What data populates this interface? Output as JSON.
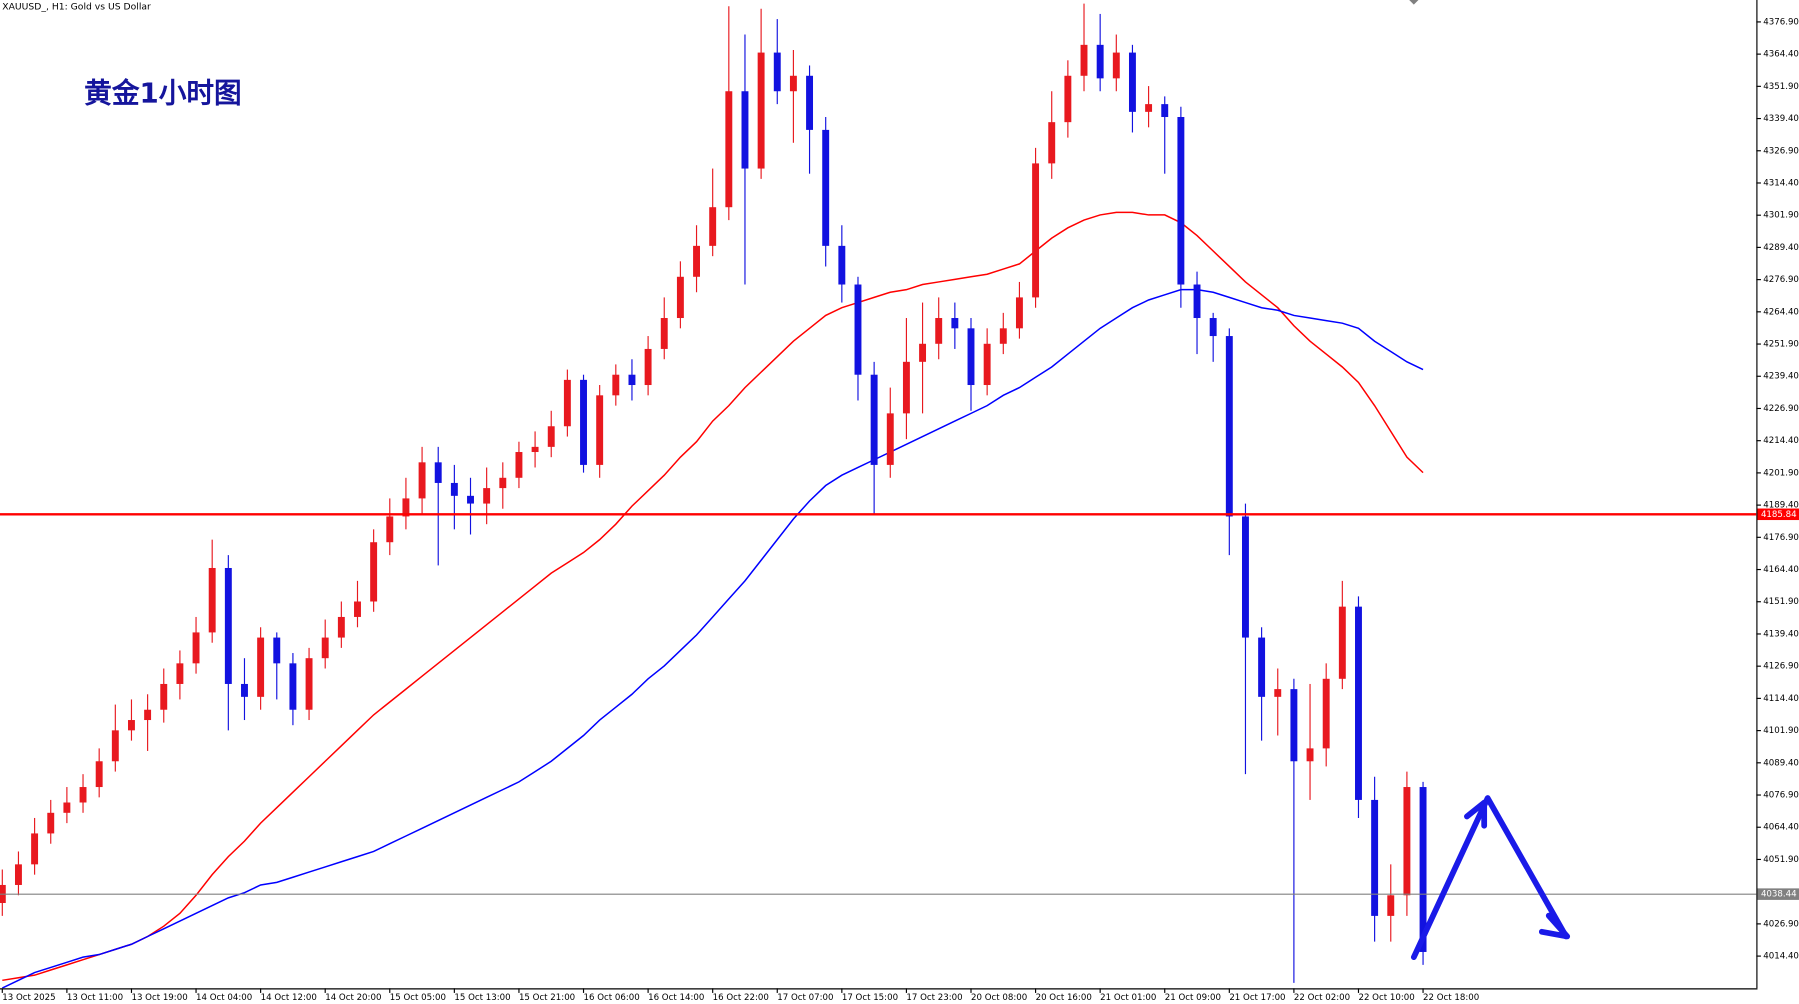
{
  "chart_data": {
    "type": "candlestick",
    "title": "XAUUSD_, H1: Gold vs US Dollar",
    "annotation": "黄金1小时图",
    "up_color": "#e8191f",
    "down_color": "#1212e0",
    "categories": [
      "13 Oct 2025",
      null,
      null,
      null,
      "13 Oct 11:00",
      null,
      null,
      null,
      "13 Oct 19:00",
      null,
      null,
      null,
      "14 Oct 04:00",
      null,
      null,
      null,
      "14 Oct 12:00",
      null,
      null,
      null,
      "14 Oct 20:00",
      null,
      null,
      null,
      "15 Oct 05:00",
      null,
      null,
      null,
      "15 Oct 13:00",
      null,
      null,
      null,
      "15 Oct 21:00",
      null,
      null,
      null,
      "16 Oct 06:00",
      null,
      null,
      null,
      "16 Oct 14:00",
      null,
      null,
      null,
      "16 Oct 22:00",
      null,
      null,
      null,
      "17 Oct 07:00",
      null,
      null,
      null,
      "17 Oct 15:00",
      null,
      null,
      null,
      "17 Oct 23:00",
      null,
      null,
      null,
      "20 Oct 08:00",
      null,
      null,
      null,
      "20 Oct 16:00",
      null,
      null,
      null,
      "21 Oct 01:00",
      null,
      null,
      null,
      "21 Oct 09:00",
      null,
      null,
      null,
      "21 Oct 17:00",
      null,
      null,
      null,
      "22 Oct 02:00",
      null,
      null,
      null,
      "22 Oct 10:00",
      null,
      null,
      null,
      "22 Oct 18:00"
    ],
    "open": [
      4035,
      4042,
      4050,
      4062,
      4070,
      4074,
      4080,
      4090,
      4102,
      4106,
      4110,
      4120,
      4128,
      4140,
      4165,
      4120,
      4115,
      4138,
      4128,
      4110,
      4130,
      4138,
      4146,
      4152,
      4175,
      4185,
      4192,
      4206,
      4198,
      4193,
      4190,
      4196,
      4200,
      4210,
      4212,
      4220,
      4238,
      4205,
      4232,
      4240,
      4236,
      4250,
      4262,
      4278,
      4290,
      4305,
      4350,
      4320,
      4365,
      4350,
      4356,
      4335,
      4290,
      4275,
      4240,
      4205,
      4225,
      4245,
      4252,
      4262,
      4258,
      4236,
      4252,
      4258,
      4270,
      4322,
      4338,
      4356,
      4368,
      4355,
      4365,
      4342,
      4345,
      4340,
      4275,
      4262,
      4255,
      4185,
      4138,
      4115,
      4118,
      4090,
      4095,
      4122,
      4150,
      4075,
      4030,
      4038,
      4080
    ],
    "high": [
      4048,
      4055,
      4068,
      4075,
      4080,
      4085,
      4095,
      4112,
      4114,
      4116,
      4126,
      4133,
      4146,
      4176,
      4170,
      4130,
      4142,
      4140,
      4132,
      4134,
      4145,
      4152,
      4160,
      4180,
      4192,
      4200,
      4212,
      4212,
      4205,
      4200,
      4204,
      4206,
      4214,
      4218,
      4226,
      4242,
      4240,
      4236,
      4244,
      4246,
      4255,
      4270,
      4284,
      4298,
      4320,
      4383,
      4372,
      4382,
      4378,
      4366,
      4360,
      4340,
      4298,
      4278,
      4245,
      4235,
      4262,
      4268,
      4270,
      4268,
      4262,
      4258,
      4264,
      4276,
      4328,
      4350,
      4362,
      4384,
      4380,
      4372,
      4368,
      4352,
      4348,
      4344,
      4280,
      4264,
      4258,
      4190,
      4142,
      4126,
      4122,
      4120,
      4128,
      4160,
      4154,
      4084,
      4050,
      4086,
      4082
    ],
    "low": [
      4030,
      4038,
      4046,
      4058,
      4066,
      4070,
      4076,
      4086,
      4098,
      4094,
      4105,
      4114,
      4124,
      4136,
      4102,
      4106,
      4110,
      4114,
      4104,
      4106,
      4126,
      4134,
      4142,
      4148,
      4170,
      4180,
      4186,
      4166,
      4180,
      4178,
      4182,
      4188,
      4196,
      4204,
      4208,
      4216,
      4202,
      4200,
      4228,
      4230,
      4232,
      4246,
      4258,
      4272,
      4286,
      4300,
      4275,
      4316,
      4345,
      4330,
      4318,
      4282,
      4268,
      4230,
      4186,
      4200,
      4215,
      4225,
      4246,
      4250,
      4226,
      4232,
      4248,
      4254,
      4266,
      4316,
      4332,
      4350,
      4350,
      4350,
      4334,
      4336,
      4318,
      4266,
      4248,
      4245,
      4170,
      4085,
      4098,
      4100,
      4004,
      4075,
      4088,
      4118,
      4068,
      4020,
      4020,
      4030,
      4011
    ],
    "close": [
      4042,
      4050,
      4062,
      4070,
      4074,
      4080,
      4090,
      4102,
      4106,
      4110,
      4120,
      4128,
      4140,
      4165,
      4120,
      4115,
      4138,
      4128,
      4110,
      4130,
      4138,
      4146,
      4152,
      4175,
      4185,
      4192,
      4206,
      4198,
      4193,
      4190,
      4196,
      4200,
      4210,
      4212,
      4220,
      4238,
      4205,
      4232,
      4240,
      4236,
      4250,
      4262,
      4278,
      4290,
      4305,
      4350,
      4320,
      4365,
      4350,
      4356,
      4335,
      4290,
      4275,
      4240,
      4205,
      4225,
      4245,
      4252,
      4262,
      4258,
      4236,
      4252,
      4258,
      4270,
      4322,
      4338,
      4356,
      4368,
      4355,
      4365,
      4342,
      4345,
      4340,
      4275,
      4262,
      4255,
      4185,
      4138,
      4115,
      4118,
      4090,
      4095,
      4122,
      4150,
      4075,
      4030,
      4038,
      4080,
      4016
    ],
    "lines": [
      {
        "color": "#ff0000",
        "values": [
          4005,
          4006,
          4007,
          4009,
          4011,
          4013,
          4015,
          4017,
          4019,
          4022,
          4026,
          4031,
          4038,
          4046,
          4053,
          4059,
          4066,
          4072,
          4078,
          4084,
          4090,
          4096,
          4102,
          4108,
          4113,
          4118,
          4123,
          4128,
          4133,
          4138,
          4143,
          4148,
          4153,
          4158,
          4163,
          4167,
          4171,
          4176,
          4182,
          4189,
          4195,
          4201,
          4208,
          4214,
          4222,
          4228,
          4235,
          4241,
          4247,
          4253,
          4258,
          4263,
          4266,
          4268,
          4270,
          4272,
          4273,
          4275,
          4276,
          4277,
          4278,
          4279,
          4281,
          4283,
          4288,
          4293,
          4297,
          4300,
          4302,
          4303,
          4303,
          4302,
          4302,
          4299,
          4294,
          4288,
          4282,
          4276,
          4271,
          4266,
          4259,
          4253,
          4248,
          4243,
          4237,
          4228,
          4218,
          4208,
          4202
        ]
      },
      {
        "color": "#0000ff",
        "values": [
          4002,
          4005,
          4008,
          4010,
          4012,
          4014,
          4015,
          4017,
          4019,
          4022,
          4025,
          4028,
          4031,
          4034,
          4037,
          4039,
          4042,
          4043,
          4045,
          4047,
          4049,
          4051,
          4053,
          4055,
          4058,
          4061,
          4064,
          4067,
          4070,
          4073,
          4076,
          4079,
          4082,
          4086,
          4090,
          4095,
          4100,
          4106,
          4111,
          4116,
          4122,
          4127,
          4133,
          4139,
          4146,
          4153,
          4160,
          4168,
          4176,
          4184,
          4191,
          4197,
          4201,
          4204,
          4207,
          4210,
          4213,
          4216,
          4219,
          4222,
          4225,
          4228,
          4232,
          4235,
          4239,
          4243,
          4248,
          4253,
          4258,
          4262,
          4266,
          4269,
          4271,
          4273,
          4273,
          4272,
          4270,
          4268,
          4266,
          4265,
          4263,
          4262,
          4261,
          4260,
          4258,
          4253,
          4249,
          4245,
          4242
        ]
      }
    ],
    "hlines": [
      {
        "value": 4185.84,
        "label": "4185.84",
        "color": "#ff0000"
      },
      {
        "value": 4038.44,
        "label": "4038.44",
        "color": "#808080"
      }
    ],
    "ylim": [
      4001.9,
      4385.4
    ],
    "yticks": [
      {
        "value": 4376.9,
        "label": "4376.90"
      },
      {
        "value": 4364.4,
        "label": "4364.40"
      },
      {
        "value": 4351.9,
        "label": "4351.90"
      },
      {
        "value": 4339.4,
        "label": "4339.40"
      },
      {
        "value": 4326.9,
        "label": "4326.90"
      },
      {
        "value": 4314.4,
        "label": "4314.40"
      },
      {
        "value": 4301.9,
        "label": "4301.90"
      },
      {
        "value": 4289.4,
        "label": "4289.40"
      },
      {
        "value": 4276.9,
        "label": "4276.90"
      },
      {
        "value": 4264.4,
        "label": "4264.40"
      },
      {
        "value": 4251.9,
        "label": "4251.90"
      },
      {
        "value": 4239.4,
        "label": "4239.40"
      },
      {
        "value": 4226.9,
        "label": "4226.90"
      },
      {
        "value": 4214.4,
        "label": "4214.40"
      },
      {
        "value": 4201.9,
        "label": "4201.90"
      },
      {
        "value": 4189.4,
        "label": "4189.40"
      },
      {
        "value": 4176.9,
        "label": "4176.90"
      },
      {
        "value": 4164.4,
        "label": "4164.40"
      },
      {
        "value": 4151.9,
        "label": "4151.90"
      },
      {
        "value": 4139.4,
        "label": "4139.40"
      },
      {
        "value": 4126.9,
        "label": "4126.90"
      },
      {
        "value": 4114.4,
        "label": "4114.40"
      },
      {
        "value": 4101.9,
        "label": "4101.90"
      },
      {
        "value": 4089.4,
        "label": "4089.40"
      },
      {
        "value": 4076.9,
        "label": "4076.90"
      },
      {
        "value": 4064.4,
        "label": "4064.40"
      },
      {
        "value": 4051.9,
        "label": "4051.90"
      },
      {
        "value": 4026.9,
        "label": "4026.90"
      },
      {
        "value": 4014.4,
        "label": "4014.40"
      }
    ]
  }
}
